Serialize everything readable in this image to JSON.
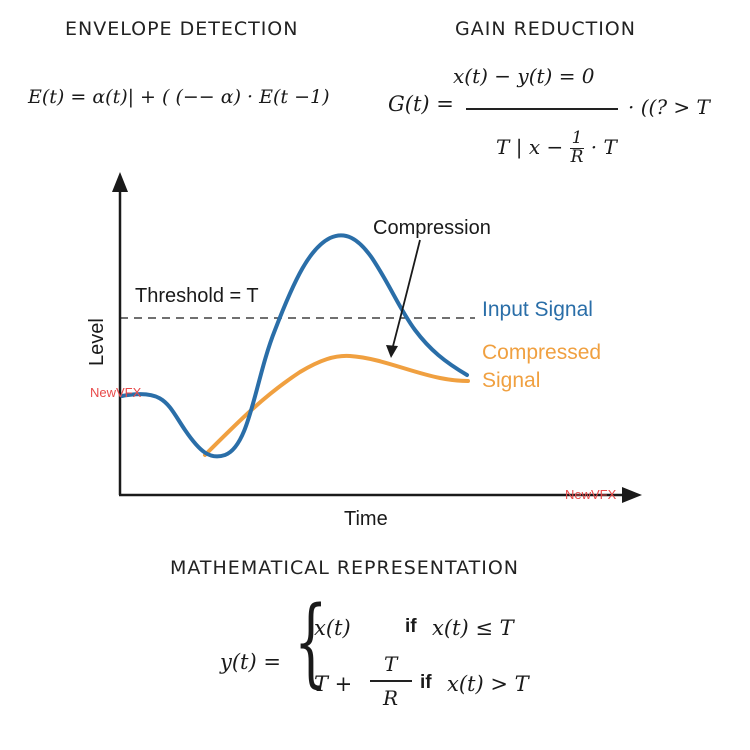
{
  "headings": {
    "envelope": "ENVELOPE DETECTION",
    "gain": "GAIN REDUCTION",
    "math": "MATHEMATICAL REPRESENTATION"
  },
  "envelope_formula": "E(t) = α(t)| + ( (−− α) · E(t −1)",
  "gain_formula": {
    "lhs": "G(t) =",
    "numerator": "x(t) − y(t) = 0",
    "denominator_left": "T",
    "denominator_mid": "x −",
    "denominator_frac_num": "1",
    "denominator_frac_den": "R",
    "denominator_right": "· T",
    "tail": "· ((? > T"
  },
  "diagram": {
    "y_axis_label": "Level",
    "x_axis_label": "Time",
    "threshold_label": "Threshold = T",
    "annotation": "Compression",
    "legend": [
      {
        "name": "Input Signal",
        "color": "#2a6ea8"
      },
      {
        "name_line1": "Compressed",
        "name_line2": "Signal",
        "color": "#f0a040"
      }
    ],
    "watermark": "NewVFX",
    "colors": {
      "input": "#2a6ea8",
      "compressed": "#f0a040",
      "axis": "#1a1a1a",
      "watermark": "#e84a4a"
    }
  },
  "piecewise": {
    "lhs": "y(t) =",
    "case1_value": "x(t)",
    "case1_if": "if",
    "case1_cond": "x(t) ≤ T",
    "case2_value": "T +",
    "case2_frac_num": "T",
    "case2_frac_den": "R",
    "case2_if": "if",
    "case2_cond": "x(t) > T"
  }
}
